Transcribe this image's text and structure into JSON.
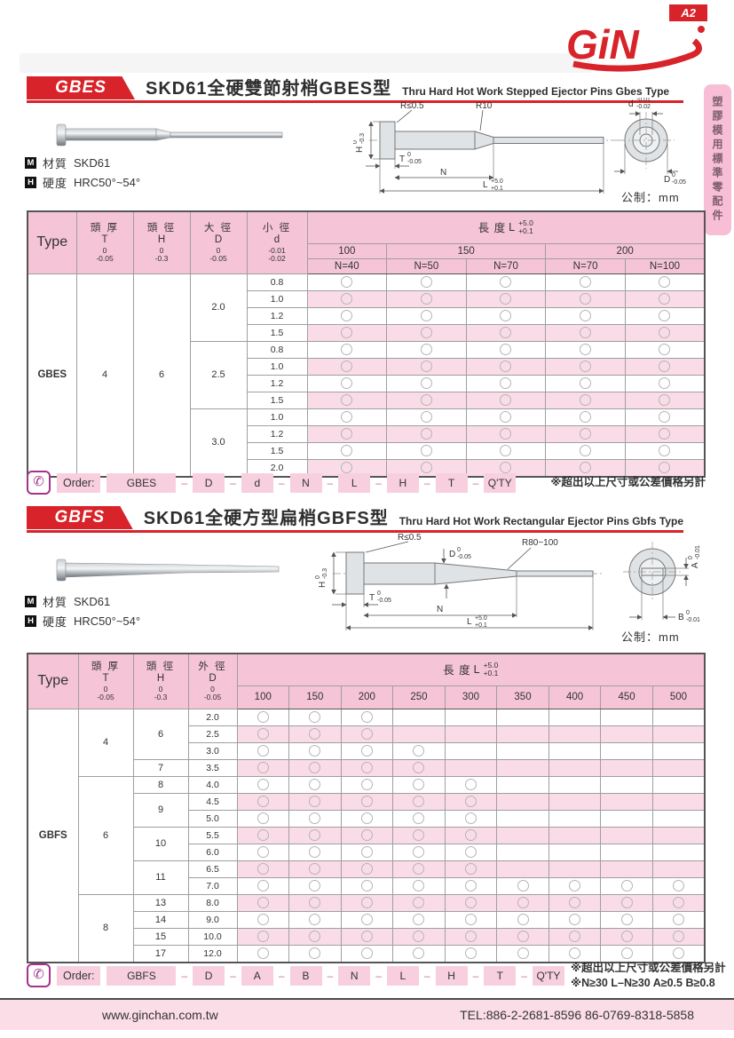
{
  "logo": {
    "text": "GiN"
  },
  "side_tab": {
    "text": "塑膠模用標準零配件"
  },
  "common": {
    "material_icon": "M",
    "material_label": "材質",
    "material_value": "SKD61",
    "hardness_icon": "H",
    "hardness_label": "硬度",
    "hardness_value": "HRC50°~54°",
    "unit_note": "公制：mm",
    "order_label": "Order:",
    "phone_icon": "✆",
    "dash": "–"
  },
  "colors": {
    "brand_red": "#d8232a",
    "header_pink": "#f5c4d6",
    "row_pink": "#fadce8",
    "tab_pink": "#f8bed6",
    "footer_pink": "#fbdde8",
    "order_pink": "#f8cfdf"
  },
  "gbes": {
    "badge": "GBES",
    "title_zh": "SKD61全硬雙節射梢GBES型",
    "title_en": "Thru Hard Hot Work Stepped Ejector Pins Gbes Type",
    "drawing": {
      "r_head": "R≤0.5",
      "r_step": "R10",
      "h_sym": "H",
      "h_tol": [
        "0",
        "-0.3"
      ],
      "t_sym": "T",
      "t_tol": [
        "0",
        "-0.05"
      ],
      "n_sym": "N",
      "l_sym": "L",
      "l_tol": [
        "+5.0",
        "+0.1"
      ],
      "d_small_sym": "d",
      "d_small_tol": [
        "-0.01",
        "-0.02"
      ],
      "d_big_sym": "D",
      "d_big_tol": [
        "0",
        "-0.05"
      ]
    },
    "table": {
      "type_header": "Type",
      "col_headers": [
        {
          "zh": "頭 厚",
          "sym": "T",
          "tol": [
            "0",
            "-0.05"
          ]
        },
        {
          "zh": "頭 徑",
          "sym": "H",
          "tol": [
            "0",
            "-0.3"
          ]
        },
        {
          "zh": "大 徑",
          "sym": "D",
          "tol": [
            "0",
            "-0.05"
          ]
        },
        {
          "zh": "小 徑",
          "sym": "d",
          "tol": [
            "-0.01",
            "-0.02"
          ]
        }
      ],
      "length_zh": "長 度",
      "length_sym": "L",
      "length_tol": [
        "+5.0",
        "+0.1"
      ],
      "length_groups": [
        {
          "label": "100",
          "span": 1
        },
        {
          "label": "150",
          "span": 2
        },
        {
          "label": "200",
          "span": 2
        }
      ],
      "n_headers": [
        "N=40",
        "N=50",
        "N=70",
        "N=70",
        "N=100"
      ],
      "type_value": "GBES",
      "t_value": "4",
      "h_value": "6",
      "d_groups": [
        {
          "d": "2.0",
          "rows": [
            {
              "val": "0.8",
              "avail": 5
            },
            {
              "val": "1.0",
              "avail": 5
            },
            {
              "val": "1.2",
              "avail": 5
            },
            {
              "val": "1.5",
              "avail": 5
            }
          ]
        },
        {
          "d": "2.5",
          "rows": [
            {
              "val": "0.8",
              "avail": 5
            },
            {
              "val": "1.0",
              "avail": 5
            },
            {
              "val": "1.2",
              "avail": 5
            },
            {
              "val": "1.5",
              "avail": 5
            }
          ]
        },
        {
          "d": "3.0",
          "rows": [
            {
              "val": "1.0",
              "avail": 5
            },
            {
              "val": "1.2",
              "avail": 5
            },
            {
              "val": "1.5",
              "avail": 5
            },
            {
              "val": "2.0",
              "avail": 5
            }
          ]
        }
      ]
    },
    "order": {
      "parts": [
        "GBES",
        "D",
        "d",
        "N",
        "L",
        "H",
        "T",
        "Q'TY"
      ],
      "notes": [
        "※超出以上尺寸或公差價格另計"
      ]
    }
  },
  "gbfs": {
    "badge": "GBFS",
    "title_zh": "SKD61全硬方型扁梢GBFS型",
    "title_en": "Thru Hard Hot Work Rectangular Ejector Pins Gbfs Type",
    "drawing": {
      "r_head": "R≤0.5",
      "r_taper": "R80~100",
      "d_sym": "D",
      "d_tol": [
        "0",
        "-0.05"
      ],
      "h_sym": "H",
      "h_tol": [
        "0",
        "-0.3"
      ],
      "t_sym": "T",
      "t_tol": [
        "0",
        "-0.05"
      ],
      "n_sym": "N",
      "l_sym": "L",
      "l_tol": [
        "+5.0",
        "+0.1"
      ],
      "a_sym": "A",
      "a_tol": [
        "0",
        "-0.01"
      ],
      "b_sym": "B",
      "b_tol": [
        "0",
        "-0.01"
      ]
    },
    "table": {
      "type_header": "Type",
      "col_headers": [
        {
          "zh": "頭 厚",
          "sym": "T",
          "tol": [
            "0",
            "-0.05"
          ]
        },
        {
          "zh": "頭 徑",
          "sym": "H",
          "tol": [
            "0",
            "-0.3"
          ]
        },
        {
          "zh": "外 徑",
          "sym": "D",
          "tol": [
            "0",
            "-0.05"
          ]
        }
      ],
      "length_zh": "長 度",
      "length_sym": "L",
      "length_tol": [
        "+5.0",
        "+0.1"
      ],
      "length_cols": [
        "100",
        "150",
        "200",
        "250",
        "300",
        "350",
        "400",
        "450",
        "500"
      ],
      "type_value": "GBFS",
      "t_groups": [
        {
          "t": "4",
          "h_groups": [
            {
              "h": "6",
              "rows": [
                {
                  "d": "2.0",
                  "avail": 3
                },
                {
                  "d": "2.5",
                  "avail": 3
                },
                {
                  "d": "3.0",
                  "avail": 4
                }
              ]
            },
            {
              "h": "7",
              "rows": [
                {
                  "d": "3.5",
                  "avail": 4
                }
              ]
            }
          ]
        },
        {
          "t": "6",
          "h_groups": [
            {
              "h": "8",
              "rows": [
                {
                  "d": "4.0",
                  "avail": 5
                }
              ]
            },
            {
              "h": "9",
              "rows": [
                {
                  "d": "4.5",
                  "avail": 5
                },
                {
                  "d": "5.0",
                  "avail": 5
                }
              ]
            },
            {
              "h": "10",
              "rows": [
                {
                  "d": "5.5",
                  "avail": 5
                },
                {
                  "d": "6.0",
                  "avail": 5
                }
              ]
            },
            {
              "h": "11",
              "rows": [
                {
                  "d": "6.5",
                  "avail": 5
                },
                {
                  "d": "7.0",
                  "avail": 9
                }
              ]
            }
          ]
        },
        {
          "t": "8",
          "h_groups": [
            {
              "h": "13",
              "rows": [
                {
                  "d": "8.0",
                  "avail": 9
                }
              ]
            },
            {
              "h": "14",
              "rows": [
                {
                  "d": "9.0",
                  "avail": 9
                }
              ]
            },
            {
              "h": "15",
              "rows": [
                {
                  "d": "10.0",
                  "avail": 9
                }
              ]
            },
            {
              "h": "17",
              "rows": [
                {
                  "d": "12.0",
                  "avail": 9
                }
              ]
            }
          ]
        }
      ]
    },
    "order": {
      "parts": [
        "GBFS",
        "D",
        "A",
        "B",
        "N",
        "L",
        "H",
        "T",
        "Q'TY"
      ],
      "notes": [
        "※超出以上尺寸或公差價格另計",
        "※N≥30  L–N≥30  A≥0.5  B≥0.8"
      ]
    }
  },
  "footer": {
    "url": "www.ginchan.com.tw",
    "tel": "TEL:886-2-2681-8596   86-0769-8318-5858",
    "page": "A2"
  }
}
